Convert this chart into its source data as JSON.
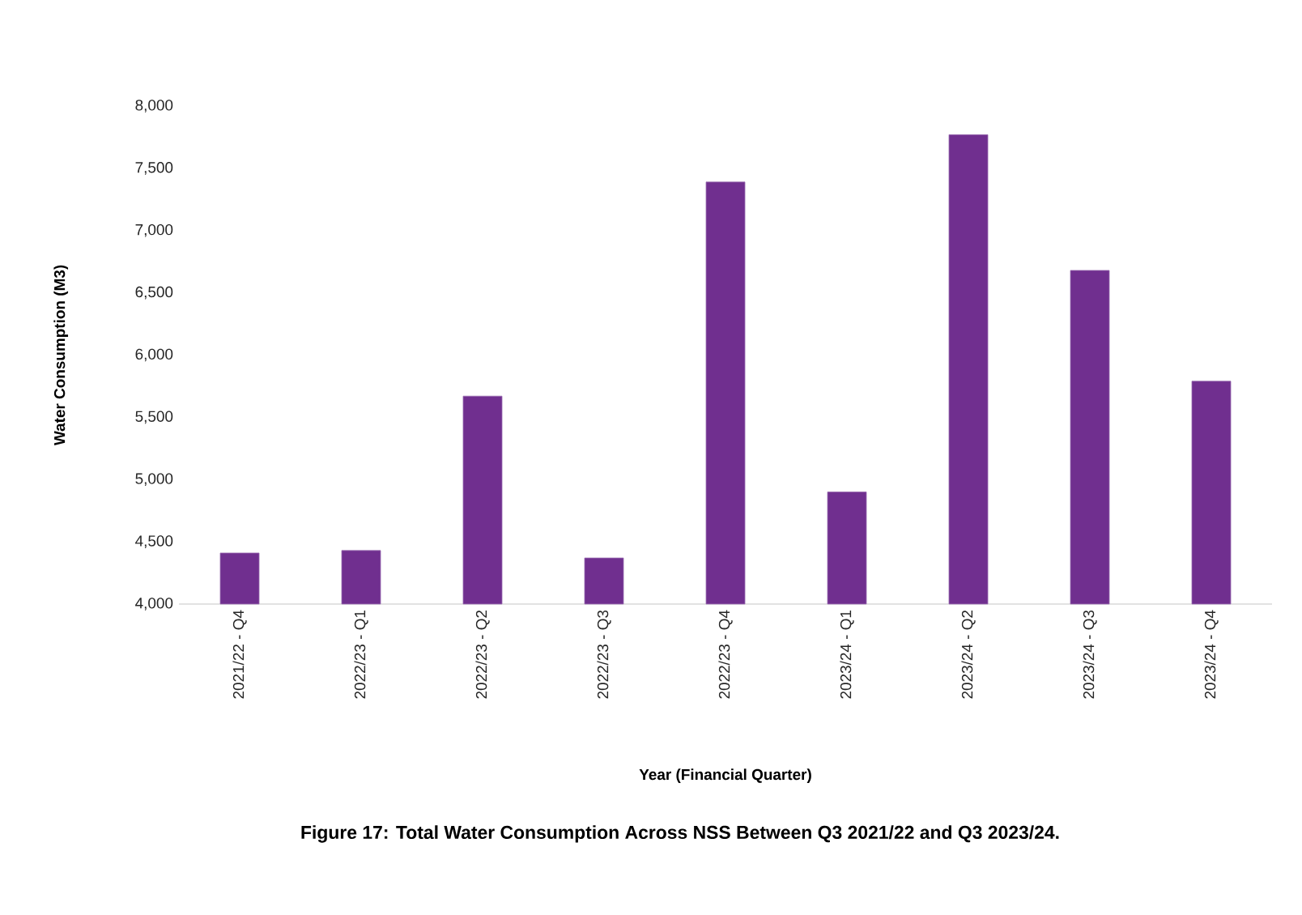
{
  "chart_data": {
    "type": "bar",
    "title": "Figure 17: Total Water Consumption Across NSS Between Q3 2021/22 and Q3 2023/24.",
    "xlabel": "Year (Financial Quarter)",
    "ylabel": "Water Consumption (M3)",
    "categories": [
      "2021/22 - Q4",
      "2022/23 - Q1",
      "2022/23 - Q2",
      "2022/23 - Q3",
      "2022/23 - Q4",
      "2023/24 - Q1",
      "2023/24 - Q2",
      "2023/24 - Q3",
      "2023/24 - Q4"
    ],
    "values": [
      4410,
      4430,
      5670,
      4370,
      7390,
      4900,
      7770,
      6680,
      5790
    ],
    "color": "#702f8f",
    "ylim": [
      4000,
      8000
    ],
    "yticks": [
      {
        "value": 4000,
        "label": "4,000"
      },
      {
        "value": 4500,
        "label": "4,500"
      },
      {
        "value": 5000,
        "label": "5,000"
      },
      {
        "value": 5500,
        "label": "5,500"
      },
      {
        "value": 6000,
        "label": "6,000"
      },
      {
        "value": 6500,
        "label": "6,500"
      },
      {
        "value": 7000,
        "label": "7,000"
      },
      {
        "value": 7500,
        "label": "7,500"
      },
      {
        "value": 8000,
        "label": "8,000"
      }
    ]
  }
}
